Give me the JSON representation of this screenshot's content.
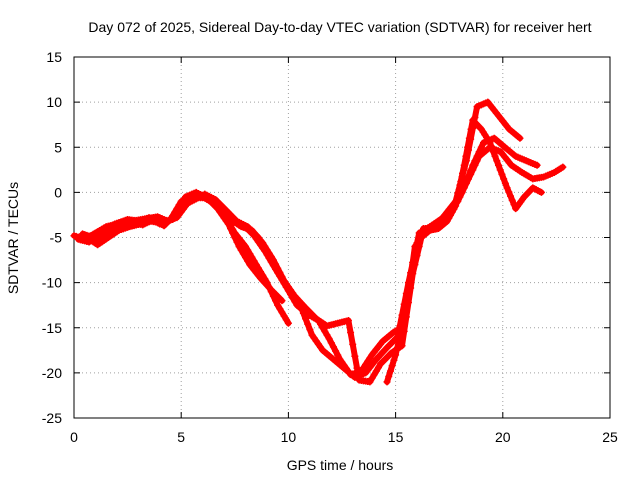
{
  "chart_data": {
    "type": "scatter",
    "title": "Day 072 of 2025, Sidereal Day-to-day VTEC variation (SDTVAR) for receiver hert",
    "xlabel": "GPS time / hours",
    "ylabel": "SDTVAR / TECUs",
    "xlim": [
      0,
      25
    ],
    "ylim": [
      -25,
      15
    ],
    "xticks": [
      0,
      5,
      10,
      15,
      20,
      25
    ],
    "yticks": [
      -25,
      -20,
      -15,
      -10,
      -5,
      0,
      5,
      10,
      15
    ],
    "grid": true,
    "marker": "plus",
    "color": "#ff0000",
    "series": [
      {
        "x": [
          0.0,
          0.5,
          1.0,
          1.5,
          2.0,
          2.5,
          3.0,
          3.5,
          4.0,
          4.5,
          5.0,
          5.5,
          6.0,
          6.5,
          7.0,
          7.5,
          8.0,
          8.5,
          9.0,
          9.5,
          10.0
        ],
        "y": [
          -4.8,
          -5.2,
          -4.5,
          -3.8,
          -3.5,
          -3.0,
          -3.2,
          -2.8,
          -3.5,
          -3.0,
          -1.0,
          -0.3,
          -0.5,
          -1.2,
          -2.5,
          -4.5,
          -6.0,
          -8.0,
          -10.0,
          -12.5,
          -14.5
        ]
      },
      {
        "x": [
          0.2,
          0.7,
          1.2,
          1.7,
          2.2,
          2.7,
          3.2,
          3.7,
          4.2,
          4.7,
          5.2,
          5.7,
          6.2,
          6.7,
          7.2,
          7.7,
          8.2,
          8.7,
          9.2,
          9.7
        ],
        "y": [
          -5.2,
          -5.5,
          -4.8,
          -4.0,
          -3.6,
          -3.3,
          -3.6,
          -3.0,
          -3.7,
          -2.5,
          -0.5,
          0.0,
          -0.6,
          -1.8,
          -3.5,
          -6.0,
          -8.0,
          -9.5,
          -10.8,
          -12.0
        ]
      },
      {
        "x": [
          0.4,
          0.9,
          1.4,
          1.9,
          2.4,
          2.9,
          3.4,
          3.9,
          4.4,
          4.9,
          5.4,
          5.9,
          6.4,
          6.9,
          7.4,
          7.9,
          8.4,
          8.9,
          9.4,
          9.9,
          10.4,
          10.9,
          11.4,
          11.9,
          12.4,
          12.9,
          13.4,
          13.9,
          14.4,
          14.9,
          15.4,
          15.9,
          16.4,
          16.9,
          17.4,
          17.9,
          18.4,
          18.9,
          19.4,
          19.9,
          20.4,
          20.9,
          21.4,
          21.9,
          22.4,
          22.8
        ],
        "y": [
          -4.6,
          -5.0,
          -4.2,
          -3.5,
          -3.1,
          -3.1,
          -2.9,
          -2.7,
          -3.2,
          -2.2,
          -0.9,
          -0.3,
          -1.0,
          -2.2,
          -3.0,
          -3.6,
          -4.8,
          -6.5,
          -8.5,
          -10.5,
          -12.5,
          -13.5,
          -14.2,
          -16.2,
          -18.5,
          -20.2,
          -19.8,
          -18.0,
          -16.5,
          -15.5,
          -14.8,
          -6.0,
          -4.2,
          -3.5,
          -2.5,
          -1.0,
          1.5,
          4.0,
          5.0,
          4.5,
          3.0,
          2.2,
          1.5,
          1.7,
          2.2,
          2.8
        ]
      },
      {
        "x": [
          0.6,
          1.1,
          1.6,
          2.1,
          2.6,
          3.1,
          3.6,
          4.1,
          4.6,
          5.1,
          5.6,
          6.1,
          6.6,
          7.1,
          7.6,
          8.1,
          8.6,
          9.1,
          9.6,
          10.1,
          10.6,
          11.1,
          11.6,
          12.1,
          12.6,
          13.1,
          13.6,
          14.1,
          14.6,
          15.1,
          15.6,
          16.1,
          16.6,
          17.1,
          17.6,
          18.1,
          18.6,
          19.1,
          19.6,
          20.1,
          20.6,
          21.1,
          21.6
        ],
        "y": [
          -5.0,
          -5.8,
          -5.0,
          -4.2,
          -3.8,
          -3.5,
          -3.2,
          -3.4,
          -3.0,
          -1.5,
          -0.8,
          -0.2,
          -0.8,
          -2.0,
          -3.2,
          -3.8,
          -5.0,
          -6.8,
          -9.0,
          -11.0,
          -12.8,
          -15.8,
          -17.5,
          -18.5,
          -19.5,
          -20.5,
          -20.0,
          -18.5,
          -17.2,
          -16.0,
          -10.0,
          -4.5,
          -3.8,
          -3.0,
          -2.0,
          0.0,
          3.0,
          5.5,
          6.0,
          5.0,
          4.0,
          3.5,
          3.0
        ]
      },
      {
        "x": [
          0.8,
          1.3,
          1.8,
          2.3,
          2.8,
          3.3,
          3.8,
          4.3,
          4.8,
          5.3,
          5.8,
          6.3,
          6.8,
          7.3,
          7.8,
          8.3,
          8.8,
          9.3,
          9.8,
          10.3,
          10.8,
          11.3,
          11.8,
          12.3,
          12.8,
          13.3,
          13.8,
          14.3,
          14.8,
          15.3,
          15.8,
          16.3,
          16.8,
          17.3,
          17.8,
          18.3,
          18.8,
          19.3,
          19.8,
          20.3,
          20.8
        ],
        "y": [
          -5.0,
          -5.2,
          -4.6,
          -3.8,
          -3.3,
          -3.2,
          -3.0,
          -3.2,
          -2.8,
          -1.2,
          -0.6,
          -0.6,
          -1.6,
          -3.0,
          -3.8,
          -4.2,
          -5.6,
          -7.5,
          -9.8,
          -11.5,
          -12.8,
          -14.0,
          -14.8,
          -14.5,
          -14.2,
          -20.8,
          -21.0,
          -19.0,
          -17.8,
          -17.0,
          -9.0,
          -4.0,
          -4.0,
          -2.5,
          -1.0,
          3.5,
          9.5,
          10.0,
          8.5,
          7.0,
          6.0
        ]
      },
      {
        "x": [
          14.6,
          15.0,
          15.4,
          15.8,
          16.2,
          16.6,
          17.0,
          17.4,
          17.8,
          18.2,
          18.6,
          19.0,
          19.4,
          19.8,
          20.2,
          20.6,
          21.0,
          21.4,
          21.8
        ],
        "y": [
          -21.0,
          -18.0,
          -14.0,
          -8.0,
          -5.0,
          -4.2,
          -4.0,
          -3.2,
          -1.5,
          3.0,
          8.0,
          7.0,
          5.5,
          3.0,
          0.5,
          -1.8,
          -0.5,
          0.5,
          0.0
        ]
      }
    ]
  }
}
